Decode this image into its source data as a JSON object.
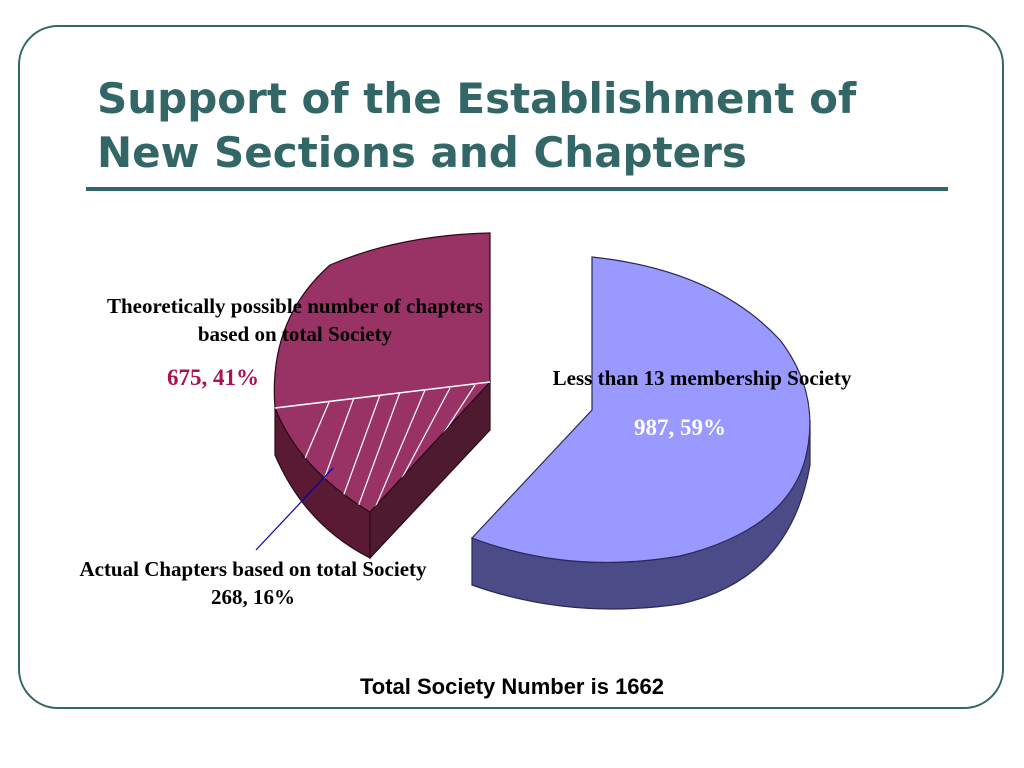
{
  "title_line1": "Support of the Establishment of",
  "title_line2": "New Sections and Chapters",
  "footer": "Total Society Number is 1662",
  "colors": {
    "frame": "#336666",
    "title": "#336666",
    "theoretical_slice": "#993366",
    "less_than_13_slice": "#9999ff",
    "theoretical_value_text": "#aa1155"
  },
  "chart_data": {
    "type": "pie",
    "total": 1662,
    "slices": [
      {
        "name": "Less than 13 membership Society",
        "value": 987,
        "percent": 59,
        "label": "987, 59%"
      },
      {
        "name": "Theoretically possible number of chapters based on total Society",
        "value": 675,
        "percent": 41,
        "label": "675, 41%"
      }
    ],
    "sub_slice": {
      "name": "Actual Chapters based on total Society",
      "value": 268,
      "percent": 16,
      "label": "268, 16%",
      "within": "Theoretically possible number of chapters based on total Society"
    },
    "labels": {
      "theoretical_line1": "Theoretically possible number of chapters",
      "theoretical_line2": "based on total Society",
      "less": "Less than 13 membership Society",
      "actual": "Actual Chapters based on total Society"
    }
  }
}
